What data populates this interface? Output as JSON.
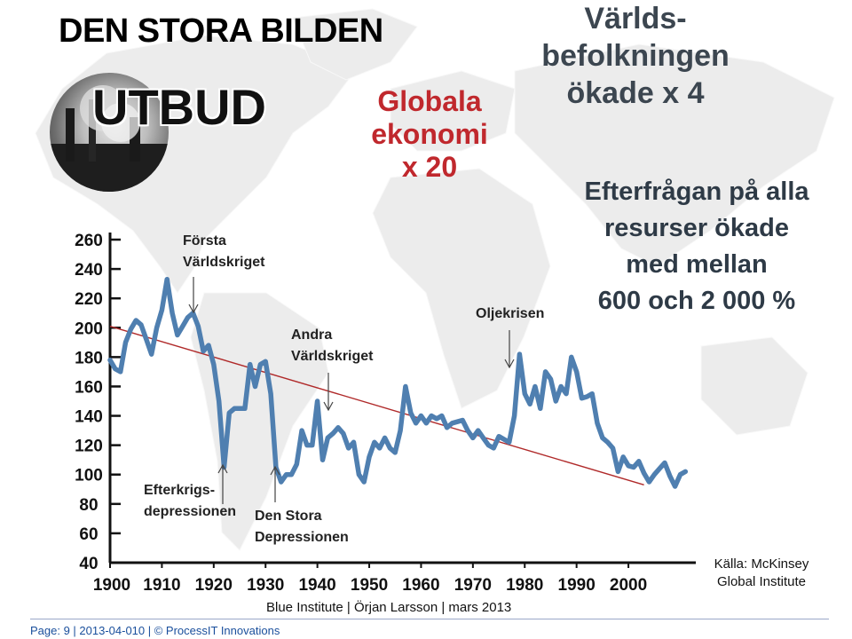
{
  "header": {
    "title": "DEN STORA BILDEN",
    "utbud": "UTBUD",
    "economy": [
      "Globala",
      "ekonomi",
      "x 20"
    ],
    "population": [
      "Världs-",
      "befolkningen",
      "ökade x 4"
    ],
    "demand": [
      "Efterfrågan på alla",
      "resurser ökade",
      "med mellan",
      "600 och 2 000 %"
    ]
  },
  "source": [
    "Källa: McKinsey",
    "Global Institute"
  ],
  "footer": "Blue Institute | Örjan Larsson | mars 2013",
  "pageinfo": "Page: 9  | 2013-04-010 | © ProcessIT Innovations",
  "colors": {
    "series": "#4f7fb0",
    "trend": "#b02a2a",
    "accent": "#c0282d",
    "axis": "#111111"
  },
  "chart_data": {
    "type": "line",
    "xlim": [
      1900,
      2013
    ],
    "ylim": [
      40,
      260
    ],
    "xticks": [
      1900,
      1910,
      1920,
      1930,
      1940,
      1950,
      1960,
      1970,
      1980,
      1990,
      2000
    ],
    "yticks": [
      40,
      60,
      80,
      100,
      120,
      140,
      160,
      180,
      200,
      220,
      240,
      260
    ],
    "series": [
      {
        "x": [
          1900,
          1901,
          1902,
          1903,
          1904,
          1905,
          1906,
          1907,
          1908,
          1909,
          1910,
          1911,
          1912,
          1913,
          1914,
          1915,
          1916,
          1917,
          1918,
          1919,
          1920,
          1921,
          1922,
          1923,
          1924,
          1925,
          1926,
          1927,
          1928,
          1929,
          1930,
          1931,
          1932,
          1933,
          1934,
          1935,
          1936,
          1937,
          1938,
          1939,
          1940,
          1941,
          1942,
          1943,
          1944,
          1945,
          1946,
          1947,
          1948,
          1949,
          1950,
          1951,
          1952,
          1953,
          1954,
          1955,
          1956,
          1957,
          1958,
          1959,
          1960,
          1961,
          1962,
          1963,
          1964,
          1965,
          1966,
          1967,
          1968,
          1969,
          1970,
          1971,
          1972,
          1973,
          1974,
          1975,
          1976,
          1977,
          1978,
          1979,
          1980,
          1981,
          1982,
          1983,
          1984,
          1985,
          1986,
          1987,
          1988,
          1989,
          1990,
          1991,
          1992,
          1993,
          1994,
          1995,
          1996,
          1997,
          1998,
          1999,
          2000,
          2001,
          2002,
          2003,
          2004,
          2005,
          2006,
          2007,
          2008,
          2009,
          2010,
          2011
        ],
        "values": [
          178,
          172,
          170,
          190,
          199,
          205,
          202,
          192,
          182,
          200,
          212,
          233,
          210,
          195,
          201,
          207,
          210,
          201,
          184,
          188,
          175,
          150,
          105,
          142,
          145,
          145,
          145,
          175,
          160,
          175,
          177,
          155,
          105,
          95,
          100,
          100,
          107,
          130,
          120,
          120,
          150,
          110,
          125,
          128,
          132,
          128,
          118,
          122,
          100,
          95,
          112,
          122,
          118,
          125,
          118,
          115,
          130,
          160,
          142,
          135,
          140,
          135,
          140,
          138,
          140,
          132,
          135,
          136,
          137,
          130,
          125,
          130,
          125,
          120,
          118,
          126,
          124,
          122,
          140,
          182,
          155,
          148,
          160,
          145,
          170,
          165,
          150,
          160,
          155,
          180,
          170,
          152,
          153,
          155,
          135,
          125,
          122,
          118,
          102,
          112,
          106,
          105,
          109,
          101,
          95,
          100,
          104,
          108,
          99,
          92,
          100,
          102
        ]
      }
    ],
    "trend": {
      "x": [
        1900,
        2003
      ],
      "values": [
        201,
        93
      ]
    },
    "annotations": [
      {
        "lines": [
          "Första",
          "Världskriget"
        ],
        "x": 1915
      },
      {
        "lines": [
          "Andra",
          "Världskriget"
        ],
        "x": 1939
      },
      {
        "lines": [
          "Oljekrisen"
        ],
        "x": 1974
      },
      {
        "lines": [
          "Efterkrigs-",
          "depressionen"
        ],
        "x": 1920
      },
      {
        "lines": [
          "Den Stora",
          "Depressionen"
        ],
        "x": 1932
      }
    ]
  }
}
